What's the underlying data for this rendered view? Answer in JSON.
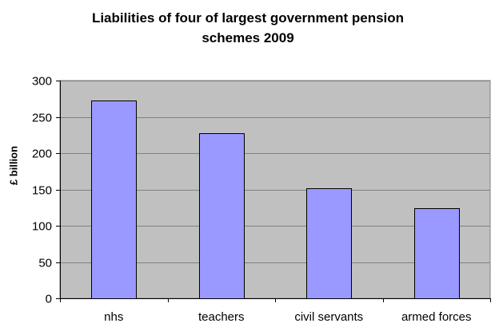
{
  "chart_data": {
    "type": "bar",
    "title_lines": [
      "Liabilities of four of largest government pension",
      "schemes 2009"
    ],
    "xlabel": "",
    "ylabel": "£ billion",
    "categories": [
      "nhs",
      "teachers",
      "civil servants",
      "armed forces"
    ],
    "values": [
      273,
      227,
      152,
      124
    ],
    "ylim": [
      0,
      300
    ],
    "yticks": [
      0,
      50,
      100,
      150,
      200,
      250,
      300
    ],
    "grid": true,
    "legend": "none",
    "colors": {
      "bar_fill": "#9999ff",
      "bar_stroke": "#000000",
      "plot_background": "#c0c0c0",
      "grid_line": "#808080"
    }
  }
}
